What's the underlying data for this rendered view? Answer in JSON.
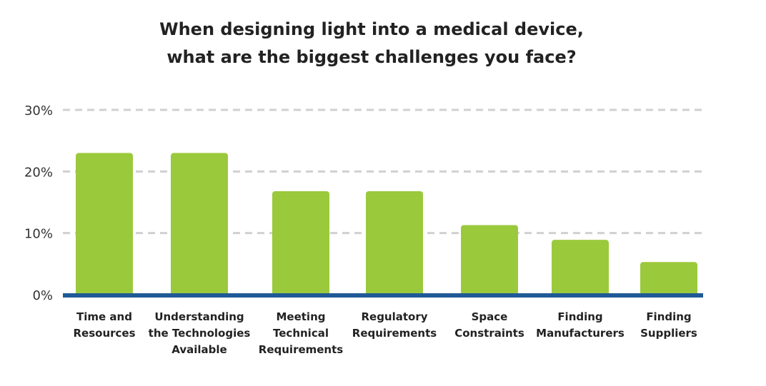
{
  "chart_data": {
    "type": "bar",
    "title_lines": [
      "When designing light into a medical device,",
      "what are the biggest challenges you face?"
    ],
    "xlabel": "",
    "ylabel": "",
    "categories": [
      [
        "Time and",
        "Resources"
      ],
      [
        "Understanding",
        "the Technologies",
        "Available"
      ],
      [
        "Meeting",
        "Technical",
        "Requirements"
      ],
      [
        "Regulatory",
        "Requirements"
      ],
      [
        "Space",
        "Constraints"
      ],
      [
        "Finding",
        "Manufacturers"
      ],
      [
        "Finding",
        "Suppliers"
      ]
    ],
    "values": [
      23,
      23,
      16.8,
      16.8,
      11.3,
      8.9,
      5.3
    ],
    "value_unit": "%",
    "ylim": [
      0,
      30
    ],
    "yticks": [
      "0%",
      "10%",
      "20%",
      "30%"
    ],
    "grid": true,
    "legend": "none"
  },
  "colors": {
    "bar": "#9bc93c",
    "baseline": "#1f5a96",
    "grid": "#d0d0d0"
  }
}
